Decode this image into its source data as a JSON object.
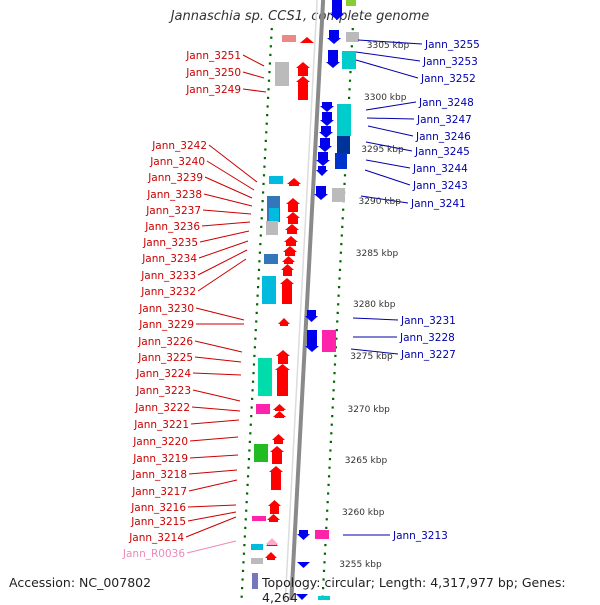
{
  "title": "Jannaschia sp. CCS1, complete genome",
  "footer": {
    "accession": "Accession: NC_007802",
    "summary": "Topology: circular; Length: 4,317,977 bp; Genes: 4,264"
  },
  "colors": {
    "forward_label": "#cc0000",
    "reverse_label": "#0000aa",
    "rna_label": "#ee88bb",
    "forward_gene": "#ff0000",
    "reverse_gene": "#0000ee",
    "backbone": "#999999",
    "tick": "#006600"
  },
  "scale_ticks": [
    {
      "label": "3305 kbp"
    },
    {
      "label": "3300 kbp"
    },
    {
      "label": "3295 kbp"
    },
    {
      "label": "3290 kbp"
    },
    {
      "label": "3285 kbp"
    },
    {
      "label": "3280 kbp"
    },
    {
      "label": "3275 kbp"
    },
    {
      "label": "3270 kbp"
    },
    {
      "label": "3265 kbp"
    },
    {
      "label": "3260 kbp"
    },
    {
      "label": "3255 kbp"
    }
  ],
  "left_labels": [
    "Jann_3251",
    "Jann_3250",
    "Jann_3249",
    "Jann_3242",
    "Jann_3240",
    "Jann_3239",
    "Jann_3238",
    "Jann_3237",
    "Jann_3236",
    "Jann_3235",
    "Jann_3234",
    "Jann_3233",
    "Jann_3232",
    "Jann_3230",
    "Jann_3229",
    "Jann_3226",
    "Jann_3225",
    "Jann_3224",
    "Jann_3223",
    "Jann_3222",
    "Jann_3221",
    "Jann_3220",
    "Jann_3219",
    "Jann_3218",
    "Jann_3217",
    "Jann_3216",
    "Jann_3215",
    "Jann_3214",
    "Jann_R0036"
  ],
  "right_labels": [
    "Jann_3255",
    "Jann_3253",
    "Jann_3252",
    "Jann_3248",
    "Jann_3247",
    "Jann_3246",
    "Jann_3245",
    "Jann_3244",
    "Jann_3243",
    "Jann_3241",
    "Jann_3231",
    "Jann_3228",
    "Jann_3227",
    "Jann_3213"
  ]
}
